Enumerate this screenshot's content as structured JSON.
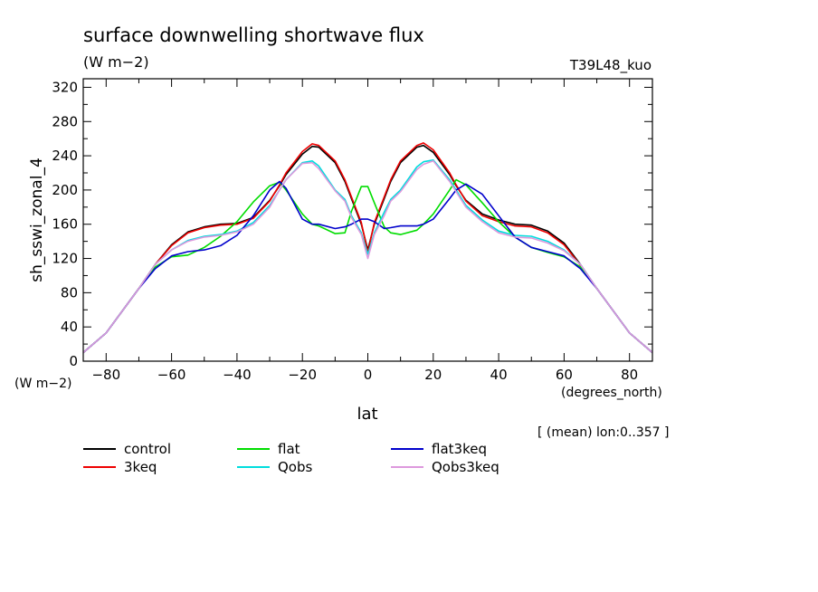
{
  "chart_data": {
    "type": "line",
    "title": "surface downwelling shortwave flux",
    "units_label": "(W m−2)",
    "run_label": "T39L48_kuo",
    "ylabel": "sh_sswi_zonal_4",
    "yunits": "(W m−2)",
    "xlabel": "lat",
    "xunits": "(degrees_north)",
    "footnote": "[ (mean) lon:0..357 ]",
    "xlim": [
      -87,
      87
    ],
    "ylim": [
      0,
      330
    ],
    "xticks": [
      -80,
      -60,
      -40,
      -20,
      0,
      20,
      40,
      60,
      80
    ],
    "yticks": [
      0,
      40,
      80,
      120,
      160,
      200,
      240,
      280,
      320
    ],
    "x": [
      -87,
      -80,
      -70,
      -65,
      -60,
      -55,
      -50,
      -45,
      -40,
      -35,
      -30,
      -27,
      -25,
      -20,
      -17,
      -15,
      -10,
      -7,
      -5,
      -2,
      0,
      2,
      5,
      7,
      10,
      15,
      17,
      20,
      25,
      27,
      30,
      35,
      40,
      45,
      50,
      55,
      60,
      65,
      70,
      80,
      87
    ],
    "series": [
      {
        "name": "control",
        "color": "#000000",
        "values": [
          10,
          33,
          85,
          113,
          136,
          151,
          157,
          160,
          161,
          168,
          188,
          205,
          218,
          242,
          251,
          250,
          232,
          210,
          190,
          160,
          130,
          160,
          190,
          210,
          232,
          250,
          252,
          244,
          218,
          205,
          188,
          172,
          165,
          160,
          159,
          152,
          138,
          113,
          85,
          33,
          10
        ]
      },
      {
        "name": "3keq",
        "color": "#ee0000",
        "values": [
          10,
          33,
          85,
          113,
          135,
          150,
          156,
          159,
          160,
          167,
          187,
          206,
          220,
          245,
          254,
          252,
          234,
          212,
          192,
          162,
          127,
          162,
          192,
          212,
          234,
          252,
          255,
          247,
          220,
          206,
          187,
          170,
          163,
          158,
          157,
          150,
          136,
          112,
          85,
          33,
          10
        ]
      },
      {
        "name": "flat",
        "color": "#00dd00",
        "values": [
          10,
          33,
          85,
          110,
          122,
          124,
          133,
          146,
          163,
          186,
          205,
          209,
          200,
          172,
          160,
          158,
          149,
          150,
          175,
          204,
          204,
          185,
          157,
          150,
          148,
          153,
          160,
          172,
          200,
          212,
          206,
          185,
          163,
          145,
          133,
          127,
          122,
          110,
          85,
          33,
          10
        ]
      },
      {
        "name": "Qobs",
        "color": "#00dddd",
        "values": [
          10,
          33,
          85,
          113,
          130,
          141,
          146,
          148,
          152,
          162,
          182,
          200,
          212,
          232,
          234,
          228,
          200,
          189,
          170,
          150,
          125,
          150,
          174,
          189,
          200,
          227,
          233,
          235,
          212,
          200,
          182,
          165,
          152,
          147,
          146,
          140,
          130,
          113,
          85,
          33,
          10
        ]
      },
      {
        "name": "flat3keq",
        "color": "#0000cc",
        "values": [
          10,
          33,
          85,
          108,
          123,
          128,
          130,
          135,
          147,
          170,
          200,
          210,
          202,
          166,
          160,
          160,
          155,
          157,
          160,
          166,
          166,
          163,
          155,
          156,
          158,
          158,
          160,
          166,
          190,
          200,
          207,
          195,
          170,
          145,
          133,
          128,
          123,
          108,
          85,
          33,
          10
        ]
      },
      {
        "name": "Qobs3keq",
        "color": "#dd99dd",
        "values": [
          10,
          33,
          85,
          113,
          130,
          140,
          145,
          147,
          151,
          160,
          180,
          200,
          212,
          231,
          232,
          225,
          199,
          187,
          168,
          148,
          120,
          148,
          170,
          187,
          198,
          224,
          230,
          234,
          210,
          198,
          180,
          163,
          150,
          145,
          144,
          138,
          129,
          113,
          85,
          33,
          10
        ]
      }
    ]
  }
}
